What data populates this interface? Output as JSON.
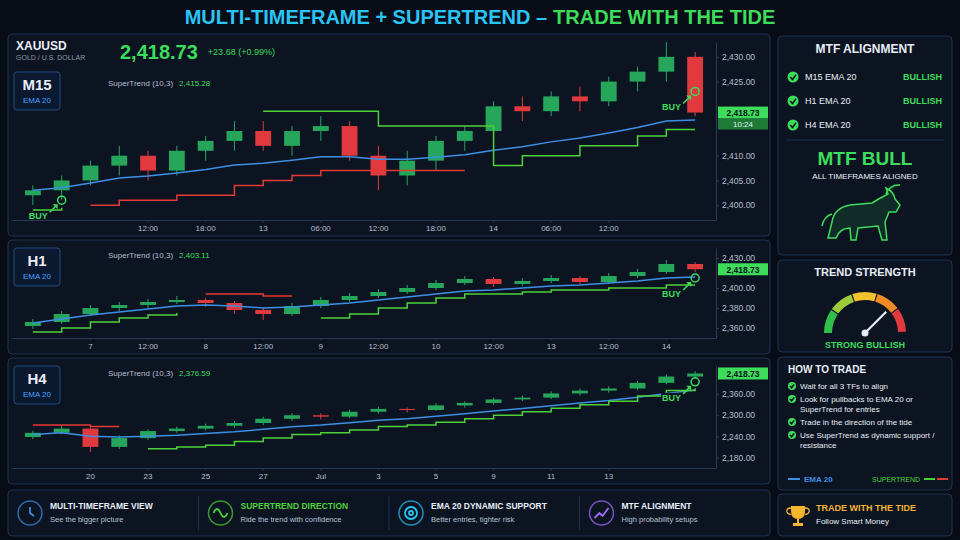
{
  "title": {
    "main": "MULTI-TIMEFRAME + SUPERTREND –",
    "accent": "TRADE WITH THE TIDE"
  },
  "header": {
    "symbol": "XAUUSD",
    "description": "GOLD / U.S. DOLLAR",
    "price": "2,418.73",
    "change": "+23.68 (+0.99%)"
  },
  "chart_data": [
    {
      "type": "candlestick",
      "title": "M15",
      "subtitle": "EMA 20",
      "grid": false,
      "categories": [
        null,
        null,
        null,
        null,
        "12:00",
        null,
        "18:00",
        null,
        "13",
        null,
        "06:00",
        null,
        "12:00",
        null,
        "18:00",
        null,
        "14",
        null,
        "06:00",
        null,
        "12:00",
        null,
        null,
        null
      ],
      "ylim": [
        2397,
        2433
      ],
      "yticks": [
        {
          "value": 2400,
          "label": "2,400.00"
        },
        {
          "value": 2405,
          "label": "2,405.00"
        },
        {
          "value": 2410,
          "label": "2,410.00"
        },
        {
          "value": 2425,
          "label": "2,425.00"
        },
        {
          "value": 2430,
          "label": "2,430.00"
        }
      ],
      "series": [
        {
          "type": "candlestick",
          "open": [
            2402,
            2403,
            2405,
            2408,
            2410,
            2407,
            2411,
            2413,
            2415,
            2412,
            2415,
            2416,
            2410,
            2406,
            2409,
            2413,
            2415,
            2420,
            2419,
            2422,
            2421,
            2425,
            2427,
            2430
          ],
          "high": [
            2404,
            2406,
            2409,
            2412,
            2411,
            2412,
            2414,
            2417,
            2417,
            2416,
            2418,
            2417,
            2412,
            2411,
            2414,
            2416,
            2421,
            2422,
            2423,
            2424,
            2426,
            2428,
            2433,
            2431
          ],
          "low": [
            2400,
            2401,
            2404,
            2406,
            2405,
            2406,
            2409,
            2411,
            2411,
            2410,
            2413,
            2409,
            2403,
            2404,
            2407,
            2411,
            2414,
            2417,
            2418,
            2419,
            2420,
            2423,
            2425,
            2418
          ],
          "close": [
            2403,
            2405,
            2408,
            2410,
            2407,
            2411,
            2413,
            2415,
            2412,
            2415,
            2416,
            2410,
            2406,
            2409,
            2413,
            2415,
            2420,
            2419,
            2422,
            2421,
            2425,
            2427,
            2430,
            2418.73
          ]
        },
        {
          "type": "line",
          "color": "#3d8fe6",
          "line_style": "solid",
          "values": [
            2403,
            2403.5,
            2404.5,
            2405.5,
            2405.9,
            2406.5,
            2407.2,
            2408.1,
            2408.5,
            2409.1,
            2409.8,
            2409.8,
            2409.3,
            2409.3,
            2409.7,
            2410.2,
            2411.1,
            2411.8,
            2412.8,
            2413.6,
            2414.6,
            2415.7,
            2417,
            2417.2
          ]
        },
        {
          "type": "line",
          "color": "#4cd137",
          "line_style": "step",
          "values": [
            2399,
            2399.5,
            null,
            null,
            null,
            null,
            null,
            null,
            2419,
            2419,
            2419,
            2419,
            2416,
            2416,
            2416,
            2416,
            2408,
            2410,
            2410,
            2412,
            2412,
            2414,
            2415.28,
            2415.28
          ]
        },
        {
          "type": "line",
          "color": "#e53935",
          "line_style": "step",
          "values": [
            null,
            null,
            2400,
            2401,
            2401,
            2402,
            2402,
            2404,
            2405,
            2406,
            2407,
            2407,
            2407,
            2407,
            2407,
            2407,
            null,
            null,
            null,
            null,
            null,
            null,
            null,
            null
          ]
        }
      ],
      "indicator": {
        "label": "SuperTrend (10,3)",
        "value": "2,415.28"
      },
      "last_price": {
        "value": 2418.73,
        "label": "2,418.73"
      },
      "countdown": "10:24",
      "annotations": [
        {
          "text": "BUY",
          "x": 1,
          "y": 2401
        },
        {
          "text": "BUY",
          "x": 23,
          "y": 2423
        }
      ]
    },
    {
      "type": "candlestick",
      "title": "H1",
      "subtitle": "EMA 20",
      "grid": false,
      "categories": [
        null,
        null,
        "7",
        null,
        "12:00",
        null,
        "8",
        null,
        "12:00",
        null,
        "9",
        null,
        "12:00",
        null,
        "10",
        null,
        "12:00",
        null,
        "13",
        null,
        "12:00",
        null,
        "14",
        null
      ],
      "ylim": [
        2350,
        2440
      ],
      "yticks": [
        {
          "value": 2360,
          "label": "2,360.00"
        },
        {
          "value": 2380,
          "label": "2,380.00"
        },
        {
          "value": 2400,
          "label": "2,400.00"
        },
        {
          "value": 2430,
          "label": "2,430.00"
        }
      ],
      "series": [
        {
          "type": "candlestick",
          "open": [
            2362,
            2366,
            2374,
            2380,
            2383,
            2386,
            2388,
            2385,
            2378,
            2374,
            2382,
            2388,
            2392,
            2396,
            2400,
            2405,
            2409,
            2404,
            2407,
            2410,
            2406,
            2412,
            2416,
            2424
          ],
          "high": [
            2369,
            2377,
            2383,
            2386,
            2389,
            2392,
            2390,
            2387,
            2380,
            2385,
            2391,
            2395,
            2399,
            2403,
            2408,
            2412,
            2411,
            2410,
            2413,
            2412,
            2415,
            2419,
            2428,
            2426
          ],
          "low": [
            2359,
            2364,
            2372,
            2377,
            2380,
            2384,
            2381,
            2374,
            2368,
            2372,
            2380,
            2386,
            2390,
            2394,
            2398,
            2403,
            2401,
            2402,
            2405,
            2403,
            2404,
            2410,
            2414,
            2416
          ],
          "close": [
            2366,
            2374,
            2380,
            2383,
            2386,
            2388,
            2385,
            2378,
            2374,
            2382,
            2388,
            2392,
            2396,
            2400,
            2405,
            2409,
            2404,
            2407,
            2410,
            2406,
            2412,
            2416,
            2424,
            2418.73
          ]
        },
        {
          "type": "line",
          "color": "#3d8fe6",
          "line_style": "solid",
          "values": [
            2365,
            2369,
            2373,
            2376,
            2379,
            2382,
            2383,
            2382,
            2380,
            2381,
            2383,
            2385,
            2388,
            2391,
            2394,
            2397,
            2398,
            2400,
            2402,
            2403,
            2405,
            2407,
            2410,
            2411
          ]
        },
        {
          "type": "line",
          "color": "#4cd137",
          "line_style": "step",
          "values": [
            2356,
            2360,
            2366,
            2370,
            2373,
            2375,
            null,
            null,
            null,
            null,
            2370,
            2374,
            2380,
            2385,
            2390,
            2394,
            2394,
            2396,
            2398,
            2398,
            2400,
            2400,
            2403.11,
            2403.11
          ]
        },
        {
          "type": "line",
          "color": "#e53935",
          "line_style": "step",
          "values": [
            null,
            null,
            null,
            null,
            null,
            null,
            2394,
            2394,
            2392,
            2392,
            null,
            null,
            null,
            null,
            null,
            null,
            null,
            null,
            null,
            null,
            null,
            null,
            null,
            null
          ]
        }
      ],
      "indicator": {
        "label": "SuperTrend (10,3)",
        "value": "2,403.11"
      },
      "last_price": {
        "value": 2418.73,
        "label": "2,418.73"
      },
      "annotations": [
        {
          "text": "BUY",
          "x": 23,
          "y": 2410
        }
      ]
    },
    {
      "type": "candlestick",
      "title": "H4",
      "subtitle": "EMA 20",
      "grid": false,
      "categories": [
        null,
        null,
        "20",
        null,
        "23",
        null,
        "25",
        null,
        "27",
        null,
        "Jul",
        null,
        "3",
        null,
        "5",
        null,
        "9",
        null,
        "11",
        null,
        "13",
        null,
        null,
        null
      ],
      "ylim": [
        2150,
        2440
      ],
      "yticks": [
        {
          "value": 2180,
          "label": "2,180.00"
        },
        {
          "value": 2240,
          "label": "2,240.00"
        },
        {
          "value": 2300,
          "label": "2,300.00"
        },
        {
          "value": 2360,
          "label": "2,360.00"
        }
      ],
      "series": [
        {
          "type": "candlestick",
          "open": [
            2238,
            2250,
            2262,
            2210,
            2235,
            2255,
            2262,
            2270,
            2278,
            2290,
            2300,
            2296,
            2310,
            2318,
            2315,
            2328,
            2335,
            2345,
            2350,
            2362,
            2370,
            2376,
            2392,
            2410
          ],
          "high": [
            2256,
            2270,
            2266,
            2242,
            2260,
            2268,
            2276,
            2284,
            2296,
            2306,
            2306,
            2316,
            2324,
            2322,
            2334,
            2340,
            2350,
            2356,
            2368,
            2376,
            2382,
            2398,
            2416,
            2426
          ],
          "low": [
            2232,
            2246,
            2196,
            2204,
            2230,
            2250,
            2256,
            2264,
            2272,
            2284,
            2288,
            2292,
            2304,
            2308,
            2312,
            2322,
            2330,
            2340,
            2346,
            2356,
            2364,
            2372,
            2388,
            2404
          ],
          "close": [
            2250,
            2262,
            2210,
            2235,
            2255,
            2262,
            2270,
            2278,
            2290,
            2300,
            2296,
            2310,
            2318,
            2315,
            2328,
            2335,
            2345,
            2350,
            2362,
            2370,
            2376,
            2392,
            2410,
            2418.73
          ]
        },
        {
          "type": "line",
          "color": "#3d8fe6",
          "line_style": "solid",
          "values": [
            2245,
            2250,
            2240,
            2238,
            2240,
            2243,
            2248,
            2253,
            2260,
            2267,
            2272,
            2279,
            2286,
            2290,
            2297,
            2304,
            2312,
            2319,
            2327,
            2335,
            2342,
            2351,
            2362,
            2372
          ]
        },
        {
          "type": "line",
          "color": "#4cd137",
          "line_style": "step",
          "values": [
            null,
            null,
            null,
            null,
            2205,
            2210,
            2215,
            2225,
            2235,
            2245,
            2250,
            2258,
            2268,
            2272,
            2280,
            2290,
            2300,
            2310,
            2320,
            2330,
            2340,
            2355,
            2370,
            2376.59
          ]
        },
        {
          "type": "line",
          "color": "#e53935",
          "line_style": "step",
          "values": [
            2272,
            2272,
            2268,
            2268,
            null,
            null,
            null,
            null,
            null,
            null,
            null,
            null,
            null,
            null,
            null,
            null,
            null,
            null,
            null,
            null,
            null,
            null,
            null,
            null
          ]
        }
      ],
      "indicator": {
        "label": "SuperTrend (10,3)",
        "value": "2,376.59"
      },
      "last_price": {
        "value": 2418.73,
        "label": "2,418.73"
      },
      "annotations": [
        {
          "text": "BUY",
          "x": 23,
          "y": 2395
        }
      ]
    }
  ],
  "mtf": {
    "title": "MTF ALIGNMENT",
    "rows": [
      {
        "label": "M15 EMA 20",
        "status": "BULLISH"
      },
      {
        "label": "H1 EMA 20",
        "status": "BULLISH"
      },
      {
        "label": "H4 EMA 20",
        "status": "BULLISH"
      }
    ],
    "verdict": "MTF BULL",
    "verdict_text": "ALL TIMEFRAMES ALIGNED"
  },
  "gauge": {
    "title": "TREND STRENGTH",
    "min": 0,
    "max": 100,
    "value": 75,
    "label": "STRONG BULLISH"
  },
  "how_to": {
    "title": "HOW TO TRADE",
    "items": [
      "Wait for all 3 TFs to align",
      "Look for pullbacks to EMA 20 or SuperTrend for entries",
      "Trade in the direction of the tide",
      "Use SuperTrend as dynamic support / resistance"
    ],
    "legend": [
      {
        "label": "EMA 20",
        "color": "#3d8fe6"
      },
      {
        "label": "SUPERTREND",
        "colors": [
          "#4cd137",
          "#e53935"
        ]
      }
    ]
  },
  "features": [
    {
      "title": "MULTI-TIMEFRAME VIEW",
      "text": "See the bigger picture",
      "color": "#3d8fe6"
    },
    {
      "title": "SUPERTREND DIRECTION",
      "text": "Ride the trend with confidence",
      "color": "#4cd137"
    },
    {
      "title": "EMA 20 DYNAMIC SUPPORT",
      "text": "Better entries, tighter risk",
      "color": "#29c5f6"
    },
    {
      "title": "MTF ALIGNMENT",
      "text": "High probability setups",
      "color": "#a66cff"
    }
  ],
  "tagline": {
    "title": "TRADE WITH THE TIDE",
    "text": "Follow Smart Money",
    "color": "#f5b52e"
  }
}
